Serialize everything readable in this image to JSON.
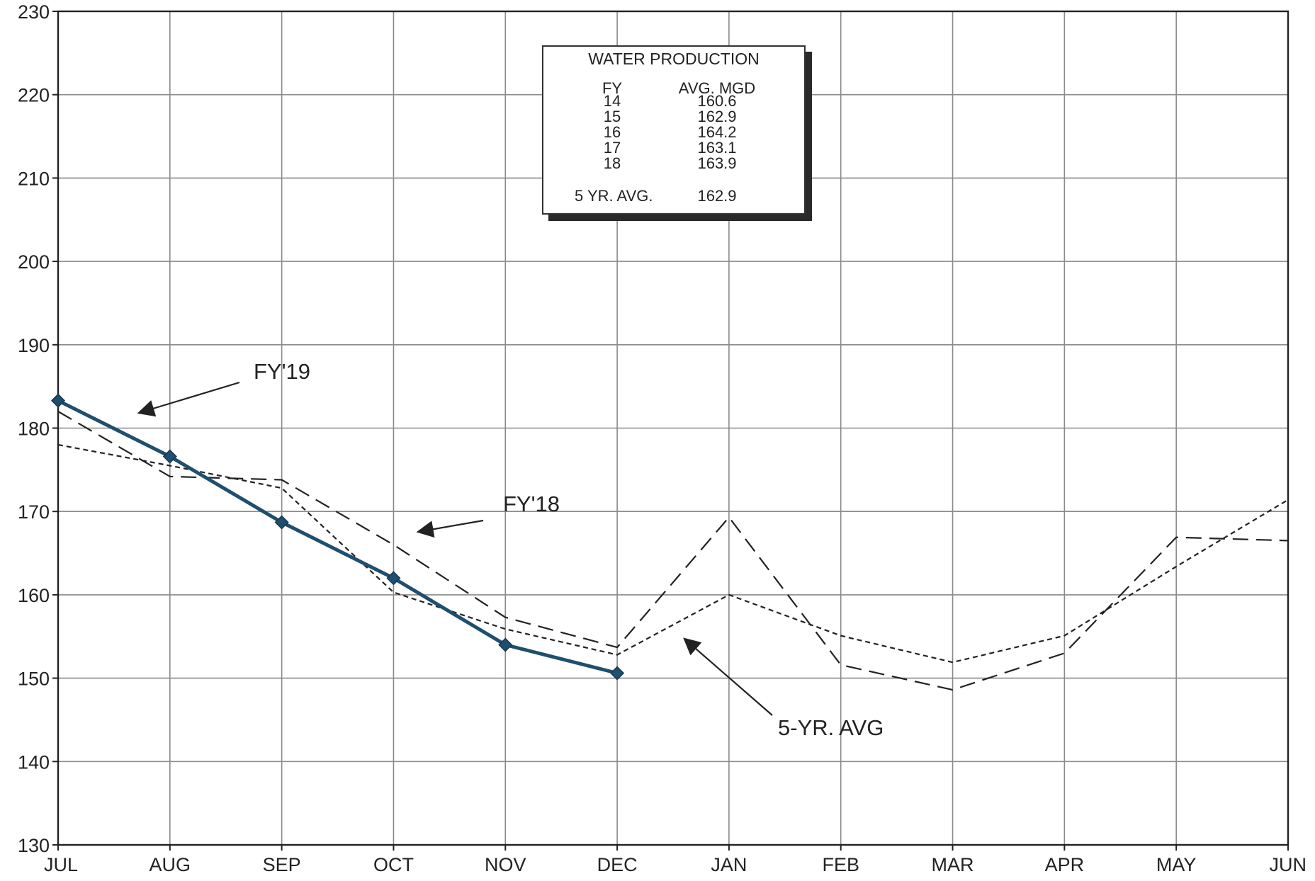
{
  "chart_data": {
    "type": "line",
    "categories": [
      "JUL",
      "AUG",
      "SEP",
      "OCT",
      "NOV",
      "DEC",
      "JAN",
      "FEB",
      "MAR",
      "APR",
      "MAY",
      "JUN"
    ],
    "y_ticks": [
      130,
      140,
      150,
      160,
      170,
      180,
      190,
      200,
      210,
      220,
      230
    ],
    "ylim": [
      130,
      230
    ],
    "grid": true,
    "series": [
      {
        "name": "FY'19",
        "style": "solid-markers",
        "color": "#1f4e6e",
        "values": [
          183.3,
          176.6,
          168.7,
          162.0,
          154.0,
          150.6,
          null,
          null,
          null,
          null,
          null,
          null
        ]
      },
      {
        "name": "FY'18",
        "style": "long-dash",
        "color": "#222222",
        "values": [
          182.0,
          174.2,
          173.8,
          166.0,
          157.3,
          153.7,
          169.3,
          151.6,
          148.6,
          153.0,
          166.9,
          166.5
        ]
      },
      {
        "name": "5-YR. AVG",
        "style": "short-dash",
        "color": "#222222",
        "values": [
          178.0,
          175.5,
          172.8,
          160.3,
          155.9,
          152.8,
          160.0,
          155.1,
          151.9,
          155.1,
          163.4,
          171.4
        ]
      }
    ],
    "annotations": [
      {
        "text": "FY'19",
        "series": "FY'19"
      },
      {
        "text": "FY'18",
        "series": "FY'18"
      },
      {
        "text": "5-YR. AVG",
        "series": "5-YR. AVG"
      }
    ],
    "legend_table": {
      "title": "WATER PRODUCTION",
      "col_fy": "FY",
      "col_avg": "AVG. MGD",
      "rows": [
        {
          "fy": "14",
          "avg": "160.6"
        },
        {
          "fy": "15",
          "avg": "162.9"
        },
        {
          "fy": "16",
          "avg": "164.2"
        },
        {
          "fy": "17",
          "avg": "163.1"
        },
        {
          "fy": "18",
          "avg": "163.9"
        }
      ],
      "five_year_label": "5 YR. AVG.",
      "five_year_value": "162.9"
    }
  }
}
